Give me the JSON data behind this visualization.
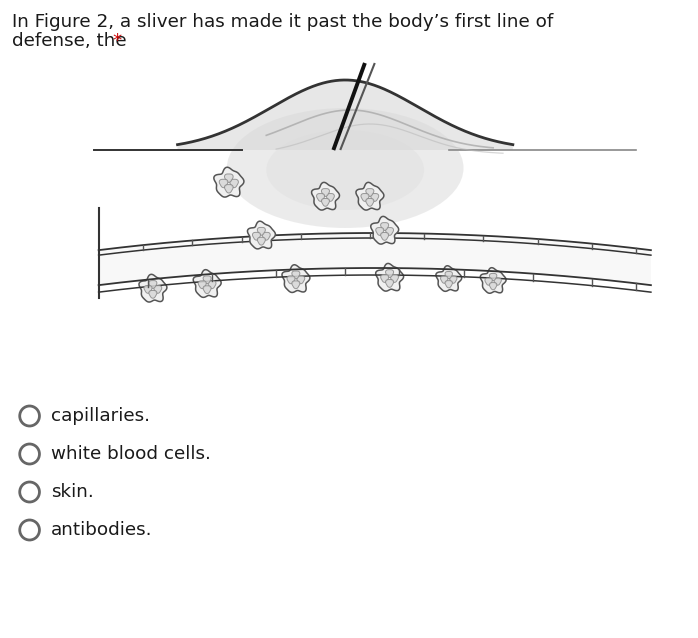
{
  "title_line1": "In Figure 2, a sliver has made it past the body’s first line of",
  "title_line2_main": "defense, the ",
  "title_line2_star": "*",
  "title_color": "#1a1a1a",
  "asterisk_color": "#cc0000",
  "options": [
    "capillaries.",
    "white blood cells.",
    "skin.",
    "antibodies."
  ],
  "bg_color": "#ffffff",
  "edge_color": "#333333",
  "wbc_face": "#f0f0f0",
  "wbc_edge": "#555555",
  "skin_fill": "#d8d8d8",
  "glow_fill": "#c8c8c8",
  "cap_fill": "#ffffff",
  "sliver1_color": "#111111",
  "sliver2_color": "#555555",
  "line_color": "#333333",
  "radio_edge": "#666666",
  "option_text_color": "#1a1a1a",
  "fig_width": 6.98,
  "fig_height": 6.38,
  "dpi": 100
}
